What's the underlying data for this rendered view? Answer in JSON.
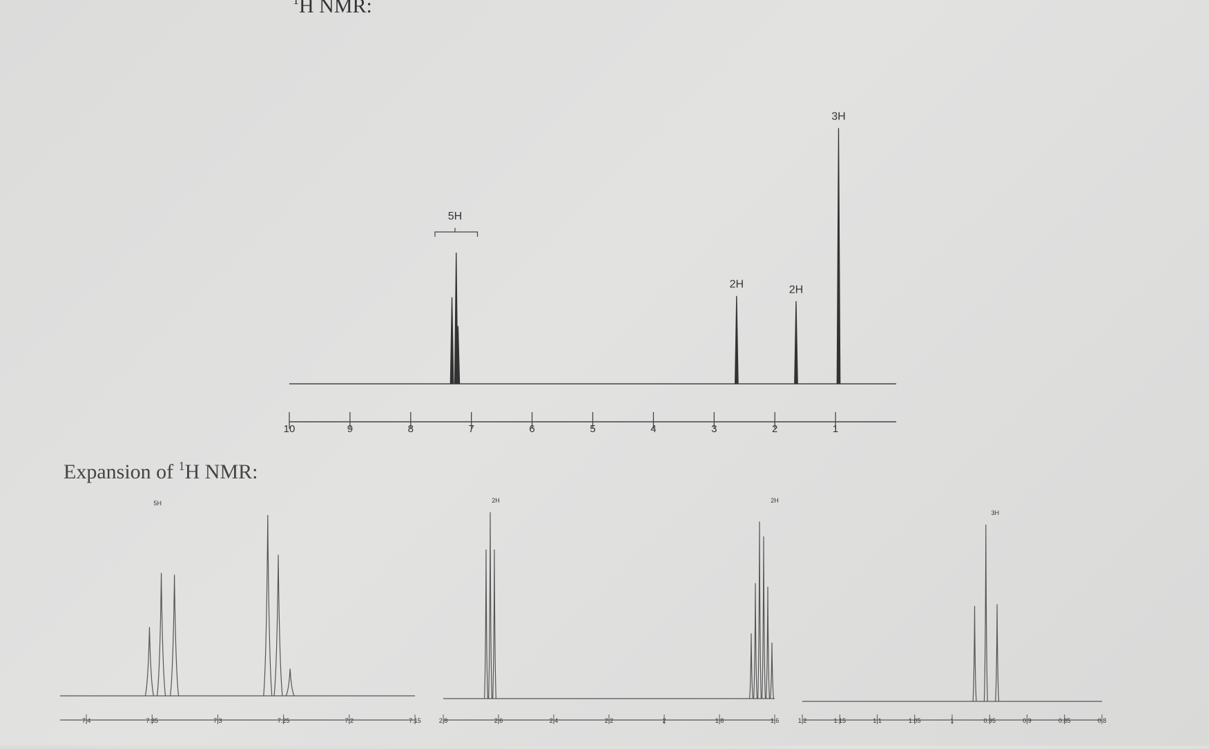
{
  "heading": {
    "sup": "1",
    "text": "H NMR:"
  },
  "expansion_heading": {
    "prefix": "Expansion of ",
    "sup": "1",
    "text": "H NMR:"
  },
  "chart_data": [
    {
      "type": "line",
      "title": "1H NMR:",
      "xlabel": "",
      "ylabel": "",
      "x_reversed": true,
      "xlim": [
        10,
        0
      ],
      "x_ticks": [
        "10",
        "9",
        "8",
        "7",
        "6",
        "5",
        "4",
        "3",
        "2",
        "1"
      ],
      "peaks": [
        {
          "ppm": 7.32,
          "height": 0.66
        },
        {
          "ppm": 7.25,
          "height": 1.0
        },
        {
          "ppm": 7.22,
          "height": 0.44
        },
        {
          "ppm": 2.63,
          "height": 0.67
        },
        {
          "ppm": 1.65,
          "height": 0.63
        },
        {
          "ppm": 0.95,
          "height": 1.95
        }
      ],
      "integrations": [
        {
          "label": "5H",
          "ppm": 7.27,
          "bracket": [
            7.6,
            6.9
          ]
        },
        {
          "label": "2H",
          "ppm": 2.63
        },
        {
          "label": "2H",
          "ppm": 1.65
        },
        {
          "label": "3H",
          "ppm": 0.95
        }
      ]
    },
    {
      "type": "line",
      "title": "Expansion of 1H NMR:",
      "panels": [
        {
          "x_ticks": [
            "7.4",
            "7.35",
            "7.3",
            "7.25",
            "7.2",
            "7.15"
          ],
          "xlim": [
            7.42,
            7.15
          ],
          "integration": {
            "label": "5H",
            "ppm": 7.35
          },
          "peaks": [
            {
              "ppm": 7.352,
              "height": 0.38
            },
            {
              "ppm": 7.343,
              "height": 0.68
            },
            {
              "ppm": 7.333,
              "height": 0.67
            },
            {
              "ppm": 7.262,
              "height": 1.0
            },
            {
              "ppm": 7.254,
              "height": 0.78
            },
            {
              "ppm": 7.245,
              "height": 0.15
            }
          ]
        },
        {
          "x_ticks": [
            "2.8",
            "2.6",
            "2.4",
            "2.2",
            "2",
            "1.8",
            "1.6"
          ],
          "xlim": [
            2.8,
            1.6
          ],
          "integration": {
            "label": "2H",
            "ppm": 2.63
          },
          "peaks": [
            {
              "ppm": 2.645,
              "height": 0.8
            },
            {
              "ppm": 2.63,
              "height": 1.0
            },
            {
              "ppm": 2.615,
              "height": 0.8
            },
            {
              "ppm": 1.685,
              "height": 0.35
            },
            {
              "ppm": 1.67,
              "height": 0.62
            },
            {
              "ppm": 1.655,
              "height": 0.95
            },
            {
              "ppm": 1.64,
              "height": 0.87
            },
            {
              "ppm": 1.625,
              "height": 0.6
            },
            {
              "ppm": 1.61,
              "height": 0.3
            }
          ],
          "integration2": {
            "label": "2H",
            "ppm": 1.62
          }
        },
        {
          "x_ticks": [
            "1.2",
            "1.15",
            "1.1",
            "1.05",
            "1",
            "0.95",
            "0.9",
            "0.85",
            "0.8"
          ],
          "xlim": [
            1.2,
            0.8
          ],
          "integration": {
            "label": "3H",
            "ppm": 0.95
          },
          "peaks": [
            {
              "ppm": 0.97,
              "height": 0.54
            },
            {
              "ppm": 0.955,
              "height": 1.0
            },
            {
              "ppm": 0.94,
              "height": 0.55
            }
          ]
        }
      ]
    }
  ]
}
